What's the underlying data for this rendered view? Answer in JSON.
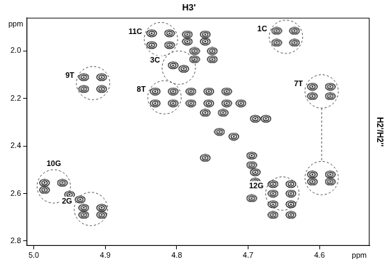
{
  "chart_data": {
    "type": "scatter",
    "title": "H3'",
    "x_label": "ppm",
    "y_label": "ppm",
    "y2_label": "H2'/H2''",
    "color": "#000000",
    "grid": false,
    "xlim": [
      5.01,
      4.53
    ],
    "xticks": [
      {
        "value": 5,
        "label": "5.0"
      },
      4.9,
      4.8,
      4.7,
      4.6
    ],
    "ylim": [
      2.82,
      1.86
    ],
    "yticks": [
      {
        "value": 2,
        "label": "2.0"
      },
      2.2,
      2.4,
      2.6,
      2.8
    ],
    "x": [
      4.835,
      4.81,
      4.835,
      4.81,
      4.785,
      4.76,
      4.785,
      4.76,
      4.775,
      4.75,
      4.775,
      4.75,
      4.66,
      4.635,
      4.66,
      4.635,
      4.805,
      4.79,
      4.93,
      4.905,
      4.93,
      4.905,
      4.83,
      4.805,
      4.83,
      4.805,
      4.78,
      4.755,
      4.73,
      4.78,
      4.755,
      4.73,
      4.71,
      4.76,
      4.735,
      4.69,
      4.675,
      4.61,
      4.585,
      4.61,
      4.585,
      4.61,
      4.585,
      4.61,
      4.585,
      4.985,
      4.96,
      4.985,
      4.95,
      4.935,
      4.93,
      4.905,
      4.93,
      4.905,
      4.665,
      4.64,
      4.665,
      4.64,
      4.665,
      4.64,
      4.665,
      4.64,
      4.695,
      4.695,
      4.69,
      4.69,
      4.695,
      4.74,
      4.72,
      4.76
    ],
    "y": [
      1.925,
      1.925,
      1.975,
      1.975,
      1.93,
      1.93,
      1.96,
      1.96,
      2.0,
      2.0,
      2.035,
      2.035,
      1.915,
      1.915,
      1.965,
      1.965,
      2.06,
      2.075,
      2.11,
      2.11,
      2.16,
      2.16,
      2.17,
      2.17,
      2.22,
      2.22,
      2.17,
      2.17,
      2.17,
      2.22,
      2.22,
      2.22,
      2.22,
      2.26,
      2.26,
      2.285,
      2.285,
      2.15,
      2.15,
      2.19,
      2.19,
      2.52,
      2.52,
      2.55,
      2.55,
      2.555,
      2.555,
      2.585,
      2.605,
      2.625,
      2.66,
      2.66,
      2.69,
      2.69,
      2.56,
      2.56,
      2.6,
      2.6,
      2.645,
      2.645,
      2.69,
      2.69,
      2.44,
      2.48,
      2.51,
      2.55,
      2.62,
      2.34,
      2.36,
      2.45
    ],
    "assignments": [
      {
        "label": "11C",
        "centers": [
          {
            "x": 4.822,
            "y": 1.95
          }
        ]
      },
      {
        "label": "1C",
        "centers": [
          {
            "x": 4.647,
            "y": 1.94
          }
        ]
      },
      {
        "label": "3C",
        "centers": [
          {
            "x": 4.797,
            "y": 2.07
          }
        ]
      },
      {
        "label": "9T",
        "centers": [
          {
            "x": 4.917,
            "y": 2.135
          }
        ]
      },
      {
        "label": "8T",
        "centers": [
          {
            "x": 4.817,
            "y": 2.195
          }
        ]
      },
      {
        "label": "7T",
        "centers": [
          {
            "x": 4.597,
            "y": 2.17
          },
          {
            "x": 4.597,
            "y": 2.535
          }
        ]
      },
      {
        "label": "10G",
        "centers": [
          {
            "x": 4.972,
            "y": 2.57
          }
        ]
      },
      {
        "label": "2G",
        "centers": [
          {
            "x": 4.92,
            "y": 2.665
          }
        ]
      },
      {
        "label": "12G",
        "centers": [
          {
            "x": 4.652,
            "y": 2.6
          }
        ]
      }
    ]
  }
}
